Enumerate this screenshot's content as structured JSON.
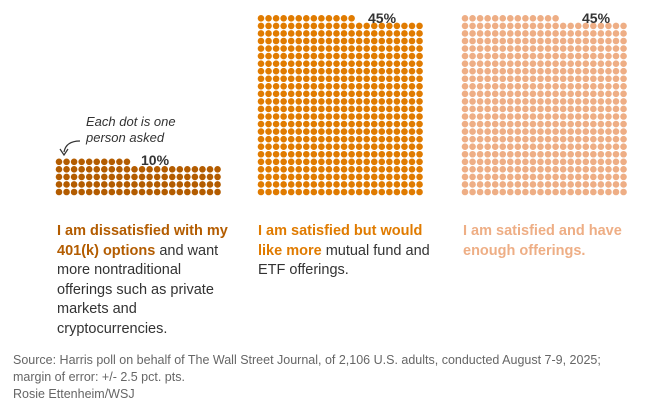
{
  "chart_data": {
    "type": "waffle",
    "title": "",
    "annotation": "Each dot is one person asked",
    "series": [
      {
        "name": "dissatisfied",
        "value": 10,
        "value_label": "10%",
        "color": "#b35c00",
        "full_rows": 4,
        "partial_row": 10,
        "label_bold": "I am dissatisfied with my 401(k) options",
        "label_rest": " and want more nontraditional offerings such as private markets and cryptocurrencies."
      },
      {
        "name": "satisfied-want-more",
        "value": 45,
        "value_label": "45%",
        "color": "#e07b00",
        "full_rows": 23,
        "partial_row": 13,
        "label_bold": "I am satisfied but would like more",
        "label_rest": " mutual fund and ETF offerings."
      },
      {
        "name": "satisfied-enough",
        "value": 45,
        "value_label": "45%",
        "color": "#eeae85",
        "full_rows": 23,
        "partial_row": 13,
        "label_bold": "I am satisfied and have enough offerings.",
        "label_rest": ""
      }
    ],
    "columns": 22
  },
  "footer": {
    "source": "Source: Harris poll on behalf of The Wall Street Journal, of 2,106 U.S. adults, conducted August 7-9, 2025;",
    "margin": "margin of error: +/- 2.5 pct. pts.",
    "credit": "Rosie Ettenheim/WSJ"
  }
}
